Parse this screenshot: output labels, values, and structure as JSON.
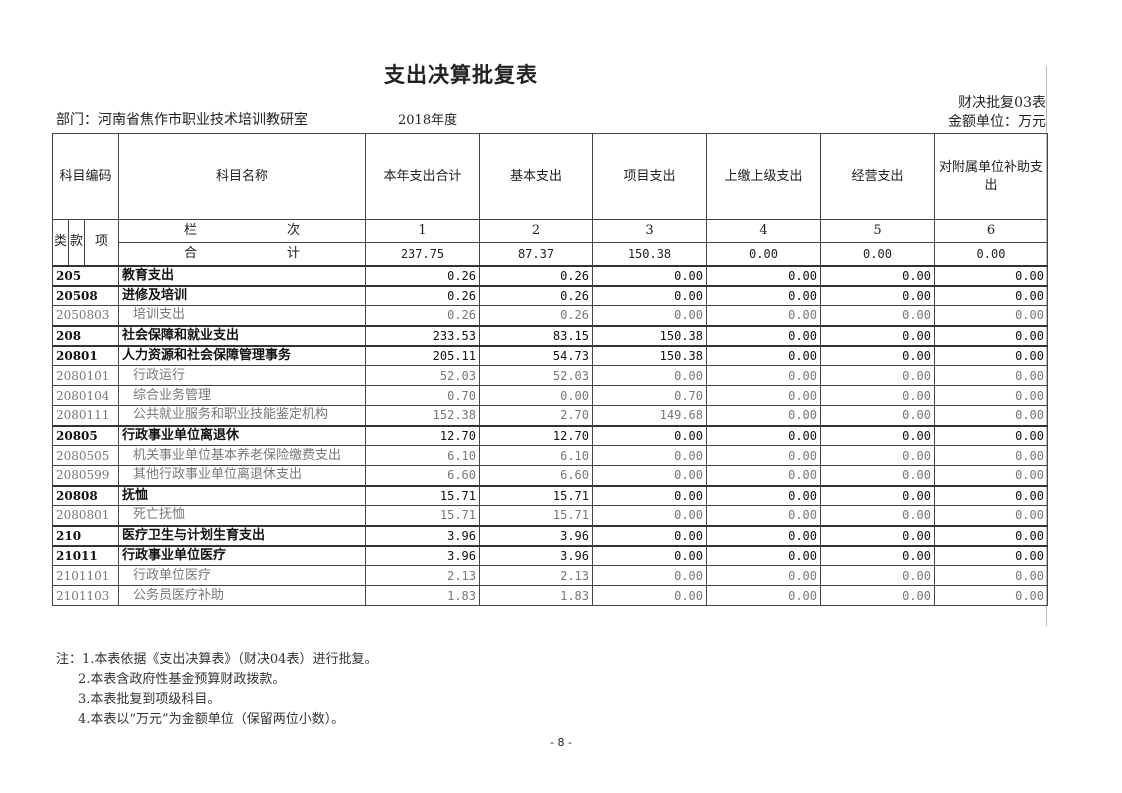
{
  "title": "支出决算批复表",
  "department": "部门：河南省焦作市职业技术培训教研室",
  "year": "2018年度",
  "form_no": "财决批复03表",
  "unit": "金额单位：万元",
  "headers": {
    "code": "科目编码",
    "name": "科目名称",
    "cols": [
      "本年支出合计",
      "基本支出",
      "项目支出",
      "上缴上级支出",
      "经营支出",
      "对附属单位补助支出"
    ],
    "lei": "类",
    "kuan": "款",
    "xiang": "项",
    "lanci_a": "栏",
    "lanci_b": "次",
    "col_numbers": [
      "1",
      "2",
      "3",
      "4",
      "5",
      "6"
    ],
    "total_a": "合",
    "total_b": "计"
  },
  "total": [
    "237.75",
    "87.37",
    "150.38",
    "0.00",
    "0.00",
    "0.00"
  ],
  "rows": [
    {
      "code": "205",
      "name": "教育支出",
      "bold": true,
      "values": [
        "0.26",
        "0.26",
        "0.00",
        "0.00",
        "0.00",
        "0.00"
      ]
    },
    {
      "code": "20508",
      "name": "进修及培训",
      "bold": true,
      "values": [
        "0.26",
        "0.26",
        "0.00",
        "0.00",
        "0.00",
        "0.00"
      ]
    },
    {
      "code": "2050803",
      "name": "培训支出",
      "bold": false,
      "values": [
        "0.26",
        "0.26",
        "0.00",
        "0.00",
        "0.00",
        "0.00"
      ]
    },
    {
      "code": "208",
      "name": "社会保障和就业支出",
      "bold": true,
      "values": [
        "233.53",
        "83.15",
        "150.38",
        "0.00",
        "0.00",
        "0.00"
      ]
    },
    {
      "code": "20801",
      "name": "人力资源和社会保障管理事务",
      "bold": true,
      "values": [
        "205.11",
        "54.73",
        "150.38",
        "0.00",
        "0.00",
        "0.00"
      ]
    },
    {
      "code": "2080101",
      "name": "行政运行",
      "bold": false,
      "values": [
        "52.03",
        "52.03",
        "0.00",
        "0.00",
        "0.00",
        "0.00"
      ]
    },
    {
      "code": "2080104",
      "name": "综合业务管理",
      "bold": false,
      "values": [
        "0.70",
        "0.00",
        "0.70",
        "0.00",
        "0.00",
        "0.00"
      ]
    },
    {
      "code": "2080111",
      "name": "公共就业服务和职业技能鉴定机构",
      "bold": false,
      "values": [
        "152.38",
        "2.70",
        "149.68",
        "0.00",
        "0.00",
        "0.00"
      ]
    },
    {
      "code": "20805",
      "name": "行政事业单位离退休",
      "bold": true,
      "values": [
        "12.70",
        "12.70",
        "0.00",
        "0.00",
        "0.00",
        "0.00"
      ]
    },
    {
      "code": "2080505",
      "name": "机关事业单位基本养老保险缴费支出",
      "bold": false,
      "values": [
        "6.10",
        "6.10",
        "0.00",
        "0.00",
        "0.00",
        "0.00"
      ]
    },
    {
      "code": "2080599",
      "name": "其他行政事业单位离退休支出",
      "bold": false,
      "values": [
        "6.60",
        "6.60",
        "0.00",
        "0.00",
        "0.00",
        "0.00"
      ]
    },
    {
      "code": "20808",
      "name": "抚恤",
      "bold": true,
      "values": [
        "15.71",
        "15.71",
        "0.00",
        "0.00",
        "0.00",
        "0.00"
      ]
    },
    {
      "code": "2080801",
      "name": "死亡抚恤",
      "bold": false,
      "values": [
        "15.71",
        "15.71",
        "0.00",
        "0.00",
        "0.00",
        "0.00"
      ]
    },
    {
      "code": "210",
      "name": "医疗卫生与计划生育支出",
      "bold": true,
      "values": [
        "3.96",
        "3.96",
        "0.00",
        "0.00",
        "0.00",
        "0.00"
      ]
    },
    {
      "code": "21011",
      "name": "行政事业单位医疗",
      "bold": true,
      "values": [
        "3.96",
        "3.96",
        "0.00",
        "0.00",
        "0.00",
        "0.00"
      ]
    },
    {
      "code": "2101101",
      "name": "行政单位医疗",
      "bold": false,
      "values": [
        "2.13",
        "2.13",
        "0.00",
        "0.00",
        "0.00",
        "0.00"
      ]
    },
    {
      "code": "2101103",
      "name": "公务员医疗补助",
      "bold": false,
      "values": [
        "1.83",
        "1.83",
        "0.00",
        "0.00",
        "0.00",
        "0.00"
      ]
    }
  ],
  "notes": [
    "注：1.本表依据《支出决算表》（财决04表）进行批复。",
    "2.本表含政府性基金预算财政拨款。",
    "3.本表批复到项级科目。",
    "4.本表以“万元”为金额单位（保留两位小数）。"
  ],
  "page_number": "- 8 -"
}
